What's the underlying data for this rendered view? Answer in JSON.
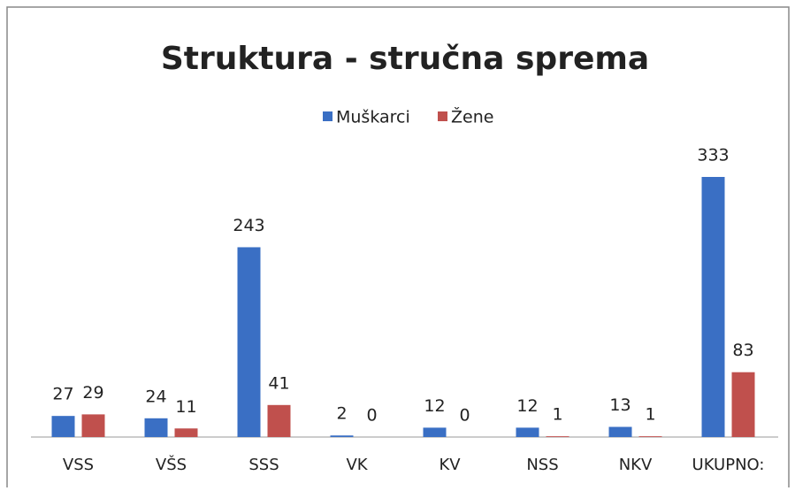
{
  "chart_data": {
    "type": "bar",
    "title": "Struktura - stručna sprema",
    "categories": [
      "VSS",
      "VŠS",
      "SSS",
      "VK",
      "KV",
      "NSS",
      "NKV",
      "UKUPNO:"
    ],
    "series": [
      {
        "name": "Muškarci",
        "color": "#3a6fc4",
        "values": [
          27,
          24,
          243,
          2,
          12,
          12,
          13,
          333
        ]
      },
      {
        "name": "Žene",
        "color": "#c0504d",
        "values": [
          29,
          11,
          41,
          0,
          0,
          1,
          1,
          83
        ]
      }
    ],
    "legend": "top"
  }
}
